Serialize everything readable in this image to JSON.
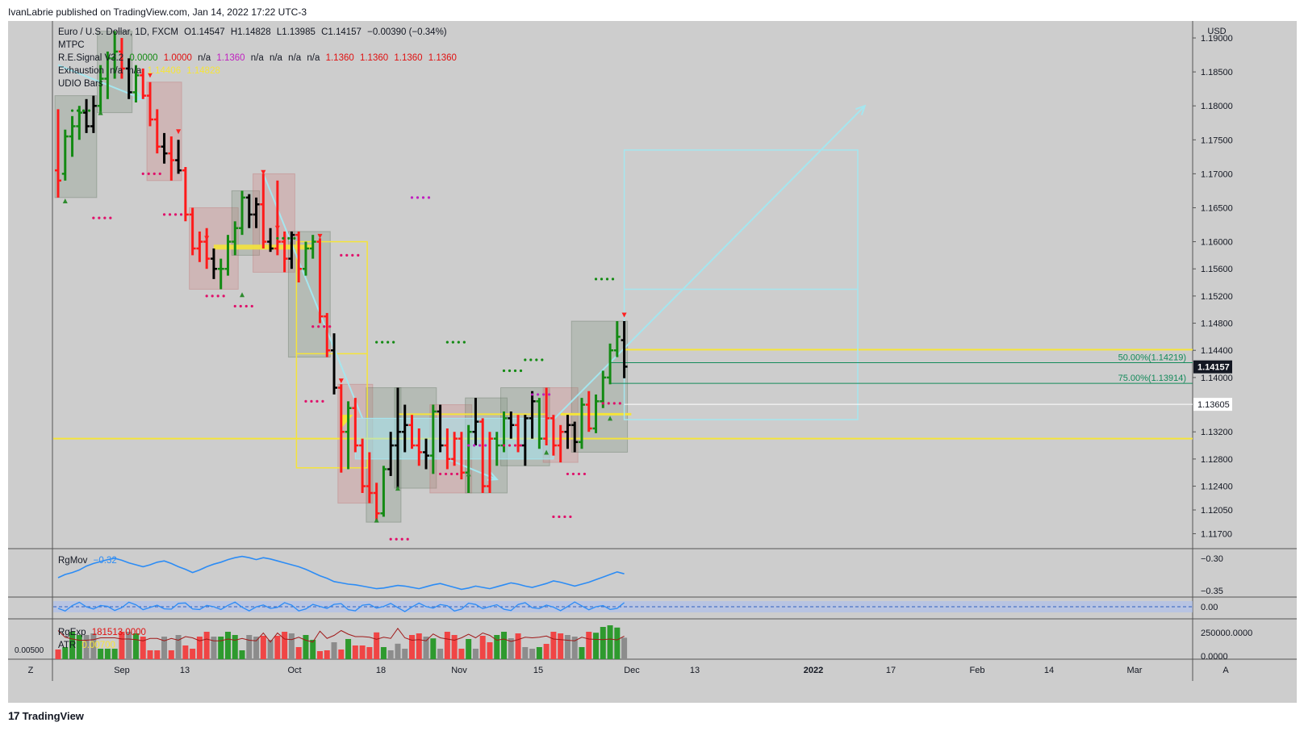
{
  "header": {
    "publish_line": "IvanLabrie published on TradingView.com, Jan 14, 2022 17:22 UTC-3"
  },
  "legend": {
    "symbol_line": "Euro / U.S. Dollar, 1D, FXCM",
    "ohlc": {
      "o": "O1.14547",
      "h": "H1.14828",
      "l": "L1.13985",
      "c": "C1.14157",
      "chg": "−0.00390 (−0.34%)"
    },
    "mtpc": "MTPC",
    "re_signal": {
      "name": "R.E.Signal V3.2",
      "values": [
        "0.0000",
        "1.0000",
        "n/a",
        "1.1360",
        "n/a",
        "n/a",
        "n/a",
        "n/a",
        "1.1360",
        "1.1360",
        "1.1360",
        "1.1360"
      ]
    },
    "exhaustion": {
      "name": "Exhaustion",
      "values": [
        "n/a",
        "n/a",
        "1.14406",
        "1.14828"
      ]
    },
    "udio": "UDIO Bars",
    "rgmov": {
      "name": "RgMov",
      "value": "−0.32"
    },
    "rgexp": {
      "name": "RgExp",
      "value": "181513.0000"
    },
    "atr": {
      "name": "ATR",
      "value": "0.00700"
    }
  },
  "colors": {
    "bull": "#138a13",
    "bear": "#ff1a1a",
    "neutral": "#000000",
    "yellow": "#f5e43a",
    "cyan": "#a5e6ef",
    "blue_line": "#2c8cf5",
    "background": "#cdcdcd"
  },
  "price_axis": {
    "currency": "USD",
    "ticks": [
      "1.19000",
      "1.18500",
      "1.18000",
      "1.17500",
      "1.17000",
      "1.16500",
      "1.16000",
      "1.15600",
      "1.15200",
      "1.14800",
      "1.14400",
      "1.14000",
      "1.13200",
      "1.12800",
      "1.12400",
      "1.12050",
      "1.11700"
    ],
    "current_price_label": "1.14157",
    "level_label": "1.13605"
  },
  "fib": {
    "fib50": "50.00%(1.14219)",
    "fib75": "75.00%(1.13914)"
  },
  "rgmov_axis": {
    "ticks": [
      "−0.30",
      "−0.35"
    ]
  },
  "osc_axis": {
    "ticks": [
      "0.00"
    ]
  },
  "volume_axis": {
    "ticks": [
      "250000.0000",
      "0.0000"
    ],
    "left_label": "0.00500"
  },
  "time_axis": {
    "labels": [
      "Sep",
      "13",
      "Oct",
      "18",
      "Nov",
      "15",
      "Dec",
      "13",
      "2022",
      "17",
      "Feb",
      "14",
      "Mar"
    ],
    "z_button": "Z",
    "a_button": "A"
  },
  "footer": {
    "brand": "TradingView"
  },
  "chart_data": {
    "type": "ohlc",
    "symbol": "EURUSD",
    "timeframe": "1D",
    "price_range": [
      1.1148,
      1.1925
    ],
    "x_labels": [
      "Sep",
      "13",
      "Oct",
      "18",
      "Nov",
      "15",
      "Dec",
      "13",
      "2022",
      "17",
      "Feb",
      "14",
      "Mar"
    ],
    "bars": [
      {
        "o": 1.1705,
        "h": 1.1795,
        "l": 1.1665,
        "c": 1.169,
        "dir": "bear"
      },
      {
        "o": 1.17,
        "h": 1.1765,
        "l": 1.169,
        "c": 1.1755,
        "dir": "bull"
      },
      {
        "o": 1.1755,
        "h": 1.1785,
        "l": 1.1725,
        "c": 1.177,
        "dir": "bull"
      },
      {
        "o": 1.177,
        "h": 1.18,
        "l": 1.175,
        "c": 1.179,
        "dir": "bull"
      },
      {
        "o": 1.179,
        "h": 1.181,
        "l": 1.176,
        "c": 1.177,
        "dir": "neutral"
      },
      {
        "o": 1.177,
        "h": 1.1815,
        "l": 1.176,
        "c": 1.18,
        "dir": "neutral"
      },
      {
        "o": 1.18,
        "h": 1.186,
        "l": 1.179,
        "c": 1.184,
        "dir": "bull"
      },
      {
        "o": 1.184,
        "h": 1.188,
        "l": 1.181,
        "c": 1.187,
        "dir": "bull"
      },
      {
        "o": 1.187,
        "h": 1.191,
        "l": 1.184,
        "c": 1.188,
        "dir": "bull"
      },
      {
        "o": 1.188,
        "h": 1.19,
        "l": 1.184,
        "c": 1.1855,
        "dir": "bear"
      },
      {
        "o": 1.1855,
        "h": 1.187,
        "l": 1.181,
        "c": 1.182,
        "dir": "neutral"
      },
      {
        "o": 1.182,
        "h": 1.186,
        "l": 1.1805,
        "c": 1.1845,
        "dir": "bull"
      },
      {
        "o": 1.1845,
        "h": 1.1855,
        "l": 1.181,
        "c": 1.1815,
        "dir": "bear"
      },
      {
        "o": 1.1815,
        "h": 1.1835,
        "l": 1.177,
        "c": 1.178,
        "dir": "bear"
      },
      {
        "o": 1.178,
        "h": 1.1795,
        "l": 1.173,
        "c": 1.174,
        "dir": "bear"
      },
      {
        "o": 1.174,
        "h": 1.176,
        "l": 1.1715,
        "c": 1.173,
        "dir": "neutral"
      },
      {
        "o": 1.173,
        "h": 1.1755,
        "l": 1.169,
        "c": 1.172,
        "dir": "bear"
      },
      {
        "o": 1.172,
        "h": 1.175,
        "l": 1.17,
        "c": 1.1705,
        "dir": "neutral"
      },
      {
        "o": 1.1705,
        "h": 1.171,
        "l": 1.163,
        "c": 1.164,
        "dir": "bear"
      },
      {
        "o": 1.164,
        "h": 1.165,
        "l": 1.158,
        "c": 1.159,
        "dir": "bear"
      },
      {
        "o": 1.159,
        "h": 1.1615,
        "l": 1.157,
        "c": 1.16,
        "dir": "bear"
      },
      {
        "o": 1.16,
        "h": 1.162,
        "l": 1.156,
        "c": 1.1575,
        "dir": "bear"
      },
      {
        "o": 1.1575,
        "h": 1.159,
        "l": 1.1545,
        "c": 1.156,
        "dir": "neutral"
      },
      {
        "o": 1.156,
        "h": 1.1575,
        "l": 1.153,
        "c": 1.156,
        "dir": "bull"
      },
      {
        "o": 1.156,
        "h": 1.161,
        "l": 1.155,
        "c": 1.16,
        "dir": "bull"
      },
      {
        "o": 1.16,
        "h": 1.163,
        "l": 1.158,
        "c": 1.162,
        "dir": "bull"
      },
      {
        "o": 1.162,
        "h": 1.1675,
        "l": 1.161,
        "c": 1.1665,
        "dir": "bull"
      },
      {
        "o": 1.1665,
        "h": 1.167,
        "l": 1.162,
        "c": 1.164,
        "dir": "neutral"
      },
      {
        "o": 1.164,
        "h": 1.1665,
        "l": 1.162,
        "c": 1.1655,
        "dir": "neutral"
      },
      {
        "o": 1.1655,
        "h": 1.17,
        "l": 1.159,
        "c": 1.16,
        "dir": "bear"
      },
      {
        "o": 1.16,
        "h": 1.162,
        "l": 1.1585,
        "c": 1.159,
        "dir": "neutral"
      },
      {
        "o": 1.159,
        "h": 1.169,
        "l": 1.158,
        "c": 1.16,
        "dir": "bear"
      },
      {
        "o": 1.16,
        "h": 1.1615,
        "l": 1.1555,
        "c": 1.1575,
        "dir": "bear"
      },
      {
        "o": 1.1575,
        "h": 1.1615,
        "l": 1.156,
        "c": 1.161,
        "dir": "neutral"
      },
      {
        "o": 1.161,
        "h": 1.1615,
        "l": 1.154,
        "c": 1.156,
        "dir": "bear"
      },
      {
        "o": 1.156,
        "h": 1.16,
        "l": 1.155,
        "c": 1.159,
        "dir": "bull"
      },
      {
        "o": 1.159,
        "h": 1.161,
        "l": 1.1575,
        "c": 1.16,
        "dir": "bull"
      },
      {
        "o": 1.16,
        "h": 1.1605,
        "l": 1.148,
        "c": 1.149,
        "dir": "bear"
      },
      {
        "o": 1.149,
        "h": 1.1495,
        "l": 1.143,
        "c": 1.144,
        "dir": "bear"
      },
      {
        "o": 1.144,
        "h": 1.1465,
        "l": 1.1375,
        "c": 1.1385,
        "dir": "neutral"
      },
      {
        "o": 1.1385,
        "h": 1.139,
        "l": 1.126,
        "c": 1.132,
        "dir": "bear"
      },
      {
        "o": 1.132,
        "h": 1.1365,
        "l": 1.1265,
        "c": 1.1355,
        "dir": "bull"
      },
      {
        "o": 1.1355,
        "h": 1.137,
        "l": 1.129,
        "c": 1.13,
        "dir": "bear"
      },
      {
        "o": 1.13,
        "h": 1.131,
        "l": 1.123,
        "c": 1.124,
        "dir": "bear"
      },
      {
        "o": 1.124,
        "h": 1.129,
        "l": 1.1215,
        "c": 1.123,
        "dir": "bear"
      },
      {
        "o": 1.123,
        "h": 1.1245,
        "l": 1.1187,
        "c": 1.12,
        "dir": "bear"
      },
      {
        "o": 1.12,
        "h": 1.127,
        "l": 1.1195,
        "c": 1.1265,
        "dir": "bull"
      },
      {
        "o": 1.1265,
        "h": 1.132,
        "l": 1.1255,
        "c": 1.13,
        "dir": "neutral"
      },
      {
        "o": 1.13,
        "h": 1.1385,
        "l": 1.1237,
        "c": 1.132,
        "dir": "neutral"
      },
      {
        "o": 1.132,
        "h": 1.136,
        "l": 1.129,
        "c": 1.133,
        "dir": "neutral"
      },
      {
        "o": 1.133,
        "h": 1.1345,
        "l": 1.1295,
        "c": 1.13,
        "dir": "bear"
      },
      {
        "o": 1.13,
        "h": 1.1325,
        "l": 1.127,
        "c": 1.129,
        "dir": "bear"
      },
      {
        "o": 1.129,
        "h": 1.131,
        "l": 1.1265,
        "c": 1.1285,
        "dir": "neutral"
      },
      {
        "o": 1.1285,
        "h": 1.136,
        "l": 1.1258,
        "c": 1.135,
        "dir": "bull"
      },
      {
        "o": 1.135,
        "h": 1.136,
        "l": 1.129,
        "c": 1.13,
        "dir": "neutral"
      },
      {
        "o": 1.13,
        "h": 1.1325,
        "l": 1.1265,
        "c": 1.128,
        "dir": "bear"
      },
      {
        "o": 1.128,
        "h": 1.132,
        "l": 1.127,
        "c": 1.131,
        "dir": "bear"
      },
      {
        "o": 1.131,
        "h": 1.132,
        "l": 1.125,
        "c": 1.126,
        "dir": "bear"
      },
      {
        "o": 1.126,
        "h": 1.133,
        "l": 1.123,
        "c": 1.132,
        "dir": "bull"
      },
      {
        "o": 1.132,
        "h": 1.137,
        "l": 1.13,
        "c": 1.1335,
        "dir": "neutral"
      },
      {
        "o": 1.1335,
        "h": 1.134,
        "l": 1.123,
        "c": 1.124,
        "dir": "bear"
      },
      {
        "o": 1.124,
        "h": 1.132,
        "l": 1.123,
        "c": 1.131,
        "dir": "bear"
      },
      {
        "o": 1.131,
        "h": 1.132,
        "l": 1.127,
        "c": 1.13,
        "dir": "bull"
      },
      {
        "o": 1.13,
        "h": 1.135,
        "l": 1.129,
        "c": 1.134,
        "dir": "bull"
      },
      {
        "o": 1.134,
        "h": 1.135,
        "l": 1.131,
        "c": 1.133,
        "dir": "neutral"
      },
      {
        "o": 1.133,
        "h": 1.1345,
        "l": 1.129,
        "c": 1.13,
        "dir": "bear"
      },
      {
        "o": 1.13,
        "h": 1.1345,
        "l": 1.127,
        "c": 1.134,
        "dir": "neutral"
      },
      {
        "o": 1.134,
        "h": 1.138,
        "l": 1.131,
        "c": 1.1365,
        "dir": "neutral"
      },
      {
        "o": 1.1365,
        "h": 1.137,
        "l": 1.1295,
        "c": 1.131,
        "dir": "bull"
      },
      {
        "o": 1.131,
        "h": 1.1385,
        "l": 1.13,
        "c": 1.134,
        "dir": "bear"
      },
      {
        "o": 1.134,
        "h": 1.1345,
        "l": 1.1285,
        "c": 1.13,
        "dir": "bear"
      },
      {
        "o": 1.13,
        "h": 1.133,
        "l": 1.1275,
        "c": 1.132,
        "dir": "bear"
      },
      {
        "o": 1.132,
        "h": 1.1345,
        "l": 1.1295,
        "c": 1.133,
        "dir": "neutral"
      },
      {
        "o": 1.133,
        "h": 1.1335,
        "l": 1.129,
        "c": 1.1305,
        "dir": "neutral"
      },
      {
        "o": 1.1305,
        "h": 1.137,
        "l": 1.1295,
        "c": 1.136,
        "dir": "bull"
      },
      {
        "o": 1.136,
        "h": 1.138,
        "l": 1.132,
        "c": 1.1325,
        "dir": "bear"
      },
      {
        "o": 1.1325,
        "h": 1.1375,
        "l": 1.1318,
        "c": 1.1365,
        "dir": "bull"
      },
      {
        "o": 1.1365,
        "h": 1.141,
        "l": 1.1355,
        "c": 1.14,
        "dir": "bull"
      },
      {
        "o": 1.14,
        "h": 1.145,
        "l": 1.139,
        "c": 1.144,
        "dir": "bull"
      },
      {
        "o": 1.144,
        "h": 1.1483,
        "l": 1.143,
        "c": 1.146,
        "dir": "bull"
      },
      {
        "o": 1.1455,
        "h": 1.1483,
        "l": 1.1399,
        "c": 1.1416,
        "dir": "neutral"
      }
    ],
    "rgmov": [
      -0.33,
      -0.325,
      -0.322,
      -0.318,
      -0.312,
      -0.308,
      -0.305,
      -0.302,
      -0.3,
      -0.303,
      -0.307,
      -0.31,
      -0.313,
      -0.31,
      -0.306,
      -0.304,
      -0.308,
      -0.313,
      -0.317,
      -0.322,
      -0.318,
      -0.313,
      -0.309,
      -0.306,
      -0.302,
      -0.299,
      -0.297,
      -0.299,
      -0.302,
      -0.299,
      -0.301,
      -0.304,
      -0.307,
      -0.31,
      -0.313,
      -0.317,
      -0.322,
      -0.327,
      -0.331,
      -0.336,
      -0.338,
      -0.34,
      -0.341,
      -0.343,
      -0.345,
      -0.347,
      -0.346,
      -0.344,
      -0.342,
      -0.343,
      -0.345,
      -0.347,
      -0.344,
      -0.341,
      -0.339,
      -0.342,
      -0.345,
      -0.348,
      -0.346,
      -0.343,
      -0.345,
      -0.347,
      -0.344,
      -0.341,
      -0.338,
      -0.34,
      -0.343,
      -0.345,
      -0.342,
      -0.339,
      -0.335,
      -0.337,
      -0.34,
      -0.343,
      -0.34,
      -0.337,
      -0.333,
      -0.329,
      -0.325,
      -0.321,
      -0.324
    ],
    "rgmov_range": [
      -0.36,
      -0.285
    ],
    "volume_range": [
      0,
      320000
    ]
  }
}
